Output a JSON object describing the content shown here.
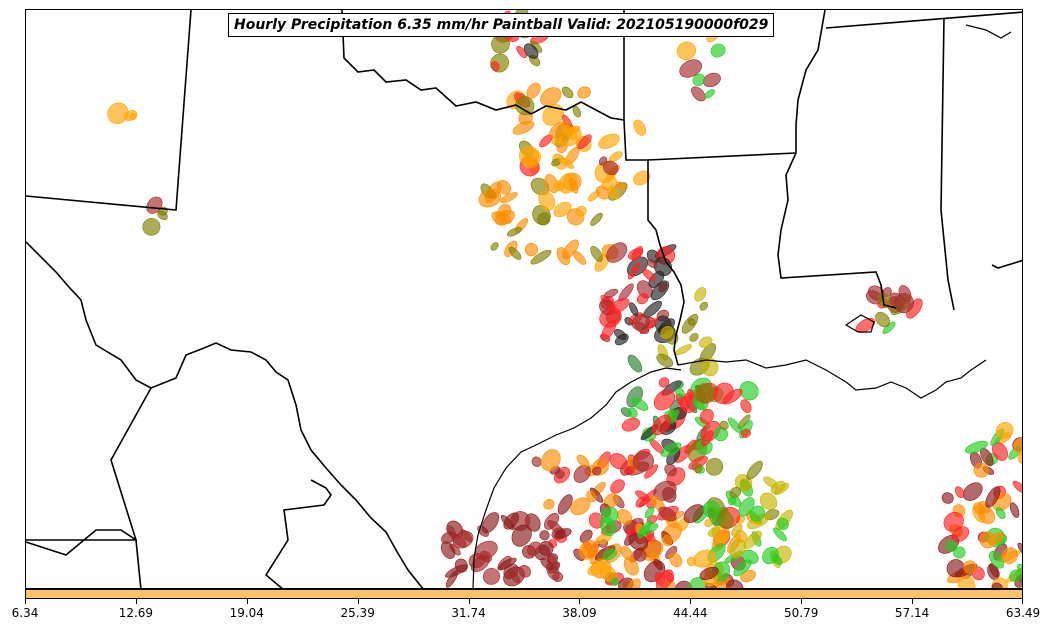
{
  "map": {
    "title": "Hourly Precipitation 6.35 mm/hr Paintball Valid: 202105190000f029",
    "colorbar": {
      "color": "#ffc266",
      "ticks": [
        "6.34",
        "12.69",
        "19.04",
        "25.39",
        "31.74",
        "38.09",
        "44.44",
        "50.79",
        "57.14",
        "63.49"
      ]
    },
    "member_colors": [
      "#8b1a1a",
      "#ff8c00",
      "#ff2020",
      "#22cc22",
      "#808000",
      "#2e7d32",
      "#ffa500",
      "#a52a2a",
      "#222222",
      "#c8b400"
    ]
  }
}
